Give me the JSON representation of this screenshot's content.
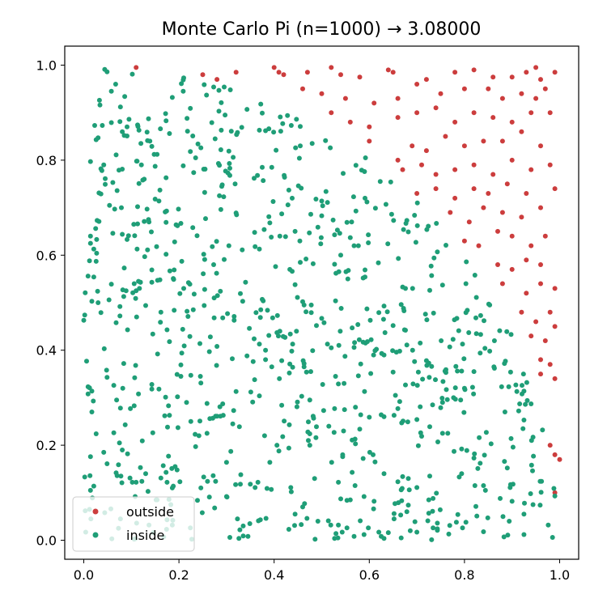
{
  "chart_data": {
    "type": "scatter",
    "title": "Monte Carlo Pi (n=1000) → 3.08000",
    "xlabel": "",
    "ylabel": "",
    "xlim": [
      -0.04,
      1.04
    ],
    "ylim": [
      -0.04,
      1.04
    ],
    "xticks": [
      0.0,
      0.2,
      0.4,
      0.6,
      0.8,
      1.0
    ],
    "yticks": [
      0.0,
      0.2,
      0.4,
      0.6,
      0.8,
      1.0
    ],
    "xtick_labels": [
      "0.0",
      "0.2",
      "0.4",
      "0.6",
      "0.8",
      "1.0"
    ],
    "ytick_labels": [
      "0.0",
      "0.2",
      "0.4",
      "0.6",
      "0.8",
      "1.0"
    ],
    "grid": false,
    "legend": {
      "placement": "lower-left",
      "entries": [
        "outside",
        "inside"
      ]
    },
    "colors": {
      "outside": "#cc3d3d",
      "inside": "#1f9e77"
    },
    "series": [
      {
        "name": "outside",
        "color": "#cc3d3d",
        "points": [
          [
            0.11,
            0.995
          ],
          [
            0.25,
            0.98
          ],
          [
            0.28,
            0.97
          ],
          [
            0.32,
            0.985
          ],
          [
            0.4,
            0.995
          ],
          [
            0.41,
            0.985
          ],
          [
            0.42,
            0.98
          ],
          [
            0.47,
            0.985
          ],
          [
            0.52,
            0.995
          ],
          [
            0.54,
            0.98
          ],
          [
            0.58,
            0.975
          ],
          [
            0.64,
            0.99
          ],
          [
            0.65,
            0.985
          ],
          [
            0.72,
            0.97
          ],
          [
            0.78,
            0.985
          ],
          [
            0.82,
            0.99
          ],
          [
            0.86,
            0.975
          ],
          [
            0.9,
            0.975
          ],
          [
            0.93,
            0.985
          ],
          [
            0.95,
            0.995
          ],
          [
            0.96,
            0.97
          ],
          [
            0.99,
            0.985
          ],
          [
            0.46,
            0.95
          ],
          [
            0.5,
            0.94
          ],
          [
            0.55,
            0.93
          ],
          [
            0.61,
            0.92
          ],
          [
            0.66,
            0.93
          ],
          [
            0.7,
            0.96
          ],
          [
            0.75,
            0.94
          ],
          [
            0.8,
            0.95
          ],
          [
            0.85,
            0.95
          ],
          [
            0.88,
            0.93
          ],
          [
            0.92,
            0.94
          ],
          [
            0.95,
            0.93
          ],
          [
            0.97,
            0.95
          ],
          [
            0.52,
            0.9
          ],
          [
            0.56,
            0.88
          ],
          [
            0.6,
            0.87
          ],
          [
            0.66,
            0.89
          ],
          [
            0.7,
            0.9
          ],
          [
            0.74,
            0.91
          ],
          [
            0.78,
            0.88
          ],
          [
            0.82,
            0.9
          ],
          [
            0.86,
            0.89
          ],
          [
            0.9,
            0.88
          ],
          [
            0.94,
            0.9
          ],
          [
            0.98,
            0.9
          ],
          [
            0.6,
            0.84
          ],
          [
            0.66,
            0.8
          ],
          [
            0.69,
            0.83
          ],
          [
            0.72,
            0.82
          ],
          [
            0.76,
            0.85
          ],
          [
            0.8,
            0.83
          ],
          [
            0.84,
            0.84
          ],
          [
            0.88,
            0.84
          ],
          [
            0.92,
            0.86
          ],
          [
            0.96,
            0.83
          ],
          [
            0.67,
            0.78
          ],
          [
            0.71,
            0.79
          ],
          [
            0.74,
            0.77
          ],
          [
            0.78,
            0.78
          ],
          [
            0.82,
            0.79
          ],
          [
            0.86,
            0.77
          ],
          [
            0.9,
            0.8
          ],
          [
            0.94,
            0.78
          ],
          [
            0.98,
            0.79
          ],
          [
            0.7,
            0.73
          ],
          [
            0.74,
            0.74
          ],
          [
            0.78,
            0.72
          ],
          [
            0.82,
            0.74
          ],
          [
            0.85,
            0.73
          ],
          [
            0.89,
            0.75
          ],
          [
            0.93,
            0.73
          ],
          [
            0.99,
            0.74
          ],
          [
            0.77,
            0.69
          ],
          [
            0.81,
            0.67
          ],
          [
            0.84,
            0.7
          ],
          [
            0.88,
            0.69
          ],
          [
            0.92,
            0.68
          ],
          [
            0.96,
            0.7
          ],
          [
            0.8,
            0.63
          ],
          [
            0.83,
            0.62
          ],
          [
            0.87,
            0.65
          ],
          [
            0.9,
            0.64
          ],
          [
            0.94,
            0.62
          ],
          [
            0.97,
            0.64
          ],
          [
            0.87,
            0.58
          ],
          [
            0.9,
            0.57
          ],
          [
            0.93,
            0.59
          ],
          [
            0.96,
            0.58
          ],
          [
            0.88,
            0.54
          ],
          [
            0.93,
            0.52
          ],
          [
            0.96,
            0.54
          ],
          [
            0.99,
            0.53
          ],
          [
            0.92,
            0.48
          ],
          [
            0.95,
            0.46
          ],
          [
            0.98,
            0.48
          ],
          [
            0.94,
            0.43
          ],
          [
            0.97,
            0.42
          ],
          [
            0.99,
            0.45
          ],
          [
            0.96,
            0.38
          ],
          [
            0.98,
            0.37
          ],
          [
            0.96,
            0.35
          ],
          [
            0.99,
            0.34
          ],
          [
            0.98,
            0.2
          ],
          [
            0.99,
            0.18
          ],
          [
            1.0,
            0.17
          ],
          [
            0.99,
            0.1
          ]
        ]
      },
      {
        "name": "inside",
        "color": "#1f9e77"
      }
    ]
  }
}
